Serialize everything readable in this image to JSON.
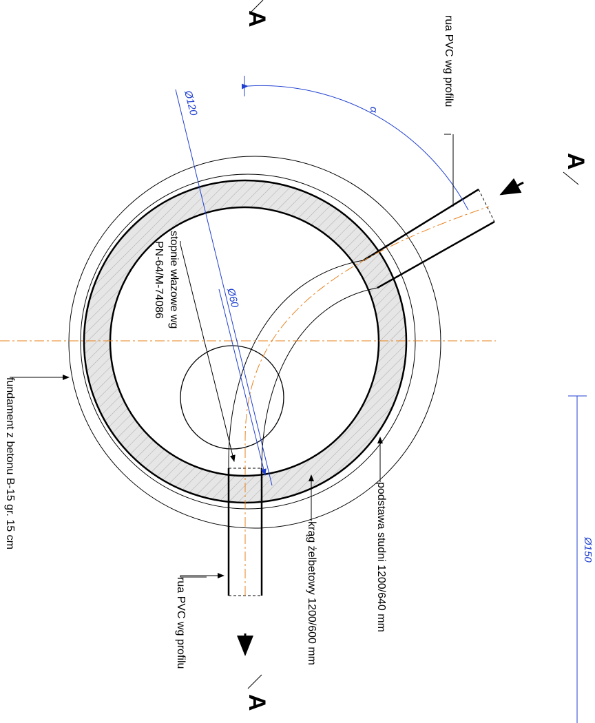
{
  "labels": {
    "pipe_top": "rua PVC wg profilu",
    "alpha": "α",
    "d120": "Ø120",
    "d60": "Ø60",
    "steps_1": "stopnie włazowe wg",
    "steps_2": "PN-64/M-74086",
    "base": "podstawa studni 1200/640 mm",
    "ring": "krąg żelbetowy 1200/600 mm",
    "foundation": "fundament z betonu B-15 gr. 15 cm",
    "pipe_bottom": "rua PVC wg profilu",
    "d150": "Ø150",
    "section_top": "A",
    "section_right": "A",
    "section_bottom": "A"
  }
}
